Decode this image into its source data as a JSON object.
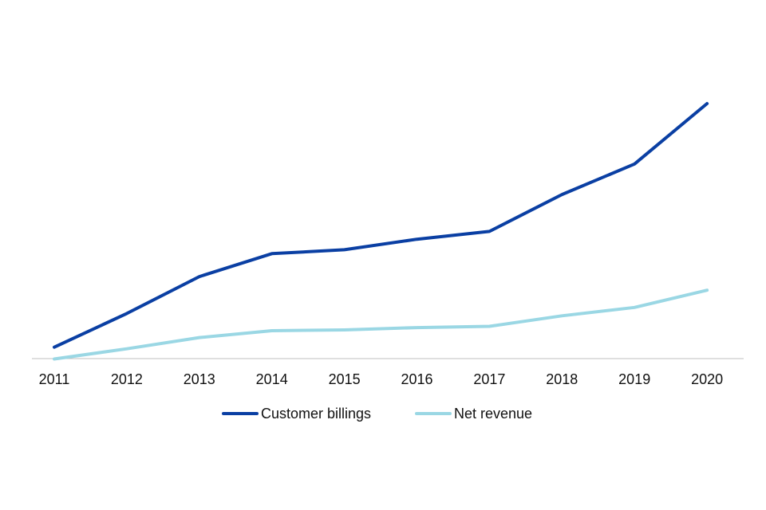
{
  "chart_data": {
    "type": "line",
    "title": "",
    "xlabel": "",
    "ylabel": "",
    "x": [
      "2011",
      "2012",
      "2013",
      "2014",
      "2015",
      "2016",
      "2017",
      "2018",
      "2019",
      "2020"
    ],
    "ylim": [
      0,
      100
    ],
    "grid": false,
    "legend_position": "bottom",
    "series": [
      {
        "name": "Customer billings",
        "color": "#0a3fa3",
        "values": [
          6.8,
          19.7,
          33.8,
          42.6,
          44.1,
          48.1,
          51.1,
          65.2,
          76.9,
          100
        ]
      },
      {
        "name": "Net revenue",
        "color": "#9ad7e4",
        "values": [
          2.3,
          6.2,
          10.5,
          13.1,
          13.4,
          14.3,
          14.8,
          18.8,
          22.0,
          28.6
        ]
      }
    ]
  }
}
